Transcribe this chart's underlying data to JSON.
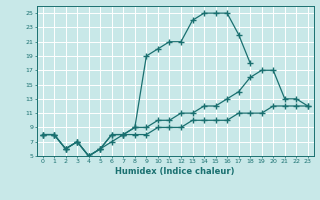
{
  "xlabel": "Humidex (Indice chaleur)",
  "background_color": "#c8e8e8",
  "grid_color": "#ffffff",
  "line_color": "#1a7070",
  "xlim": [
    -0.5,
    23.5
  ],
  "ylim": [
    5,
    26
  ],
  "yticks": [
    5,
    7,
    9,
    11,
    13,
    15,
    17,
    19,
    21,
    23,
    25
  ],
  "xticks": [
    0,
    1,
    2,
    3,
    4,
    5,
    6,
    7,
    8,
    9,
    10,
    11,
    12,
    13,
    14,
    15,
    16,
    17,
    18,
    19,
    20,
    21,
    22,
    23
  ],
  "line1_x": [
    0,
    1,
    2,
    3,
    4,
    5,
    6,
    7,
    8,
    9,
    10,
    11,
    12,
    13,
    14,
    15,
    16,
    17,
    18
  ],
  "line1_y": [
    8,
    8,
    6,
    7,
    5,
    6,
    8,
    8,
    9,
    19,
    20,
    21,
    21,
    24,
    25,
    25,
    25,
    22,
    18
  ],
  "line2_x": [
    0,
    1,
    2,
    3,
    4,
    5,
    6,
    7,
    8,
    9,
    10,
    11,
    12,
    13,
    14,
    15,
    16,
    17,
    18,
    19,
    20,
    21,
    22,
    23
  ],
  "line2_y": [
    8,
    8,
    6,
    7,
    5,
    6,
    8,
    8,
    9,
    9,
    10,
    10,
    11,
    11,
    12,
    12,
    13,
    14,
    16,
    17,
    17,
    13,
    13,
    12
  ],
  "line3_x": [
    0,
    1,
    2,
    3,
    4,
    5,
    6,
    7,
    8,
    9,
    10,
    11,
    12,
    13,
    14,
    15,
    16,
    17,
    18,
    19,
    20,
    21,
    22,
    23
  ],
  "line3_y": [
    8,
    8,
    6,
    7,
    5,
    6,
    7,
    8,
    8,
    8,
    9,
    9,
    9,
    10,
    10,
    10,
    10,
    11,
    11,
    11,
    12,
    12,
    12,
    12
  ]
}
